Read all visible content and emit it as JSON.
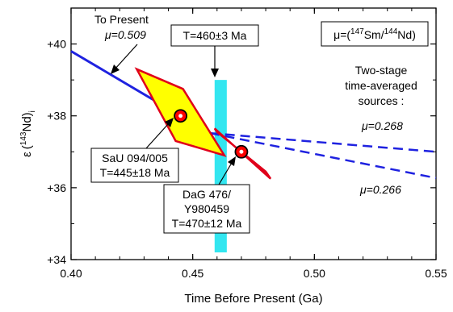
{
  "chart_data": {
    "type": "line",
    "xlabel": "Time Before Present (Ga)",
    "ylabel_epsilon": "ε",
    "ylabel_open": "(",
    "ylabel_sup": "143",
    "ylabel_main": "Nd)",
    "ylabel_sub": "i",
    "xlim": [
      0.4,
      0.55
    ],
    "ylim": [
      34,
      41
    ],
    "x_ticks": [
      {
        "value": 0.4,
        "label": "0.40"
      },
      {
        "value": 0.45,
        "label": "0.45"
      },
      {
        "value": 0.5,
        "label": "0.50"
      },
      {
        "value": 0.55,
        "label": "0.55"
      }
    ],
    "y_ticks": [
      {
        "value": 34,
        "label": "+34"
      },
      {
        "value": 36,
        "label": "+36"
      },
      {
        "value": 38,
        "label": "+38"
      },
      {
        "value": 40,
        "label": "+40"
      }
    ],
    "colors": {
      "solid_line": "#1f22e0",
      "dashed_line": "#1f22e0",
      "band": "#33e6f0",
      "parallelogram_fill": "#ffff00",
      "parallelogram_edge": "#e0001a",
      "green_fill": "#33b84a",
      "point_fill": "#ff0000"
    },
    "to_present_line": {
      "x": [
        0.4,
        0.457
      ],
      "y": [
        39.8,
        37.52
      ]
    },
    "dashed_upper": {
      "x": [
        0.457,
        0.55
      ],
      "y": [
        37.52,
        37.0
      ]
    },
    "dashed_lower": {
      "x": [
        0.457,
        0.55
      ],
      "y": [
        37.52,
        36.27
      ]
    },
    "band": {
      "x_center": 0.4615,
      "x_halfwidth": 0.0025,
      "y_from": 34.2,
      "y_to": 39.0
    },
    "parallelogram_1": {
      "points": [
        [
          0.427,
          39.3
        ],
        [
          0.463,
          36.9
        ],
        [
          0.454,
          36.75
        ],
        [
          0.445,
          37.8
        ]
      ]
    },
    "parallelogram_1_outer": {
      "points": [
        [
          0.427,
          39.3
        ],
        [
          0.446,
          38.75
        ],
        [
          0.463,
          36.9
        ],
        [
          0.443,
          37.3
        ]
      ]
    },
    "parallelogram_2": {
      "points": [
        [
          0.459,
          37.65
        ],
        [
          0.482,
          36.25
        ],
        [
          0.48,
          36.45
        ],
        [
          0.46,
          37.55
        ]
      ]
    },
    "points": [
      {
        "name": "SaU 094/005",
        "x": 0.445,
        "y": 38.0
      },
      {
        "name": "DaG 476/Y980459",
        "x": 0.47,
        "y": 37.0
      }
    ],
    "annotations": {
      "to_present": "To Present",
      "mu_present": "μ=0.509",
      "t_band": "T=460±3 Ma",
      "mu_def_pre": "μ=(",
      "mu_def_sup1": "147",
      "mu_def_mid": "Sm/",
      "mu_def_sup2": "144",
      "mu_def_post": "Nd)",
      "two_stage_1": "Two-stage",
      "two_stage_2": "time-averaged",
      "two_stage_3": "sources :",
      "mu_upper": "μ=0.268",
      "mu_lower": "μ=0.266",
      "sau_1": "SaU 094/005",
      "sau_2": "T=445±18 Ma",
      "dag_1": "DaG 476/",
      "dag_2": "Y980459",
      "dag_3": "T=470±12 Ma"
    }
  }
}
